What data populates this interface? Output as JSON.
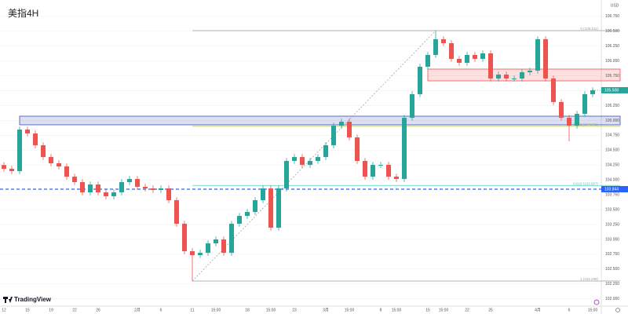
{
  "chart_data": {
    "type": "candlestick",
    "title": "美指4H",
    "brand": "TradingView",
    "axis_unit": "USD",
    "categories": [
      "12",
      null,
      null,
      "15",
      null,
      null,
      "19",
      null,
      null,
      "22",
      null,
      null,
      "26",
      null,
      null,
      null,
      null,
      "2月",
      null,
      null,
      "6",
      null,
      null,
      null,
      "11",
      null,
      null,
      "15:00",
      null,
      null,
      null,
      "18",
      null,
      null,
      "15:00",
      null,
      null,
      "23",
      null,
      null,
      null,
      "3月",
      null,
      null,
      "15:00",
      null,
      null,
      null,
      "8",
      null,
      "15:00",
      null,
      null,
      null,
      "15",
      null,
      "15:00",
      null,
      null,
      "22",
      null,
      null,
      "25",
      null,
      null,
      null,
      null,
      null,
      "4月",
      null,
      null,
      null,
      "6",
      null,
      null,
      "15:00"
    ],
    "open": [
      104.25,
      104.187,
      104.148,
      104.847,
      104.781,
      104.583,
      104.385,
      104.28,
      104.227,
      104.055,
      103.963,
      103.791,
      103.923,
      103.791,
      103.725,
      103.791,
      103.963,
      104.016,
      103.884,
      103.857,
      103.831,
      103.857,
      103.659,
      103.263,
      102.801,
      102.735,
      102.774,
      102.933,
      102.999,
      102.774,
      103.263,
      103.395,
      103.461,
      103.659,
      103.857,
      103.197,
      103.857,
      104.319,
      104.385,
      104.253,
      104.319,
      104.385,
      104.583,
      104.913,
      104.979,
      104.715,
      104.319,
      104.055,
      104.253,
      104.253,
      104.055,
      104.016,
      105.045,
      105.442,
      105.904,
      106.102,
      106.366,
      106.3,
      106.036,
      105.97,
      106.102,
      106.036,
      106.128,
      105.706,
      105.772,
      105.706,
      105.706,
      105.811,
      105.838,
      106.366,
      105.706,
      105.31,
      105.045,
      104.913,
      105.111,
      105.442
    ],
    "high": [
      104.3,
      104.237,
      104.897,
      104.897,
      104.831,
      104.633,
      104.435,
      104.33,
      104.277,
      104.105,
      104.013,
      103.973,
      103.973,
      103.841,
      103.841,
      104.013,
      104.066,
      104.066,
      103.934,
      103.907,
      103.907,
      103.907,
      103.709,
      103.313,
      102.851,
      102.824,
      102.983,
      103.049,
      103.049,
      103.313,
      103.445,
      103.511,
      103.709,
      103.907,
      103.907,
      103.907,
      104.369,
      104.435,
      104.435,
      104.369,
      104.435,
      104.633,
      104.963,
      105.029,
      105.029,
      104.765,
      104.369,
      104.303,
      104.303,
      104.303,
      104.105,
      105.095,
      105.492,
      105.954,
      106.152,
      106.511,
      106.416,
      106.35,
      106.086,
      106.152,
      106.152,
      106.178,
      106.178,
      105.822,
      105.822,
      105.756,
      105.861,
      105.888,
      106.416,
      106.416,
      105.756,
      105.36,
      105.095,
      105.161,
      105.492,
      105.558
    ],
    "low": [
      104.137,
      104.098,
      104.098,
      104.731,
      104.533,
      104.335,
      104.23,
      104.177,
      104.005,
      103.913,
      103.741,
      103.741,
      103.741,
      103.675,
      103.675,
      103.741,
      103.913,
      103.834,
      103.807,
      103.781,
      103.781,
      103.609,
      103.213,
      102.751,
      102.299,
      102.685,
      102.724,
      102.883,
      102.724,
      102.724,
      103.213,
      103.345,
      103.411,
      103.609,
      103.147,
      103.147,
      103.807,
      104.269,
      104.203,
      104.203,
      104.269,
      104.335,
      104.533,
      104.863,
      104.665,
      104.269,
      104.005,
      104.005,
      104.203,
      104.005,
      103.966,
      103.966,
      104.995,
      105.392,
      105.854,
      106.052,
      106.25,
      105.986,
      105.92,
      105.92,
      105.986,
      105.986,
      105.656,
      105.656,
      105.656,
      105.656,
      105.656,
      105.761,
      105.788,
      105.656,
      105.26,
      104.995,
      104.65,
      104.863,
      105.061,
      105.392
    ],
    "close": [
      104.187,
      104.148,
      104.847,
      104.781,
      104.583,
      104.385,
      104.28,
      104.227,
      104.055,
      103.963,
      103.791,
      103.923,
      103.791,
      103.725,
      103.791,
      103.963,
      104.016,
      103.884,
      103.857,
      103.831,
      103.857,
      103.659,
      103.263,
      102.801,
      102.735,
      102.774,
      102.933,
      102.999,
      102.774,
      103.263,
      103.395,
      103.461,
      103.659,
      103.857,
      103.197,
      103.857,
      104.319,
      104.385,
      104.253,
      104.319,
      104.385,
      104.583,
      104.913,
      104.979,
      104.715,
      104.319,
      104.055,
      104.253,
      104.253,
      104.055,
      104.016,
      105.045,
      105.442,
      105.904,
      106.102,
      106.366,
      106.3,
      106.036,
      105.97,
      106.102,
      106.036,
      106.128,
      105.706,
      105.772,
      105.706,
      105.706,
      105.811,
      105.838,
      106.366,
      105.706,
      105.31,
      105.045,
      104.913,
      105.111,
      105.442,
      105.508
    ],
    "up_color": "#26a69a",
    "down_color": "#ef5350",
    "ylim": [
      101.877,
      107.026
    ],
    "yticks": [
      {
        "value": 102,
        "label": "102.000"
      },
      {
        "value": 102.25,
        "label": "102.250"
      },
      {
        "value": 102.5,
        "label": "102.500"
      },
      {
        "value": 102.75,
        "label": "102.750"
      },
      {
        "value": 103,
        "label": "103.000"
      },
      {
        "value": 103.25,
        "label": "103.250"
      },
      {
        "value": 103.5,
        "label": "103.500"
      },
      {
        "value": 103.75,
        "label": "103.750"
      },
      {
        "value": 104,
        "label": "104.000"
      },
      {
        "value": 104.25,
        "label": "104.250"
      },
      {
        "value": 104.5,
        "label": "104.500"
      },
      {
        "value": 104.75,
        "label": "104.750"
      },
      {
        "value": 105,
        "label": "105.000"
      },
      {
        "value": 105.25,
        "label": "105.250"
      },
      {
        "value": 105.5,
        "label": "105.500"
      },
      {
        "value": 105.75,
        "label": "105.750"
      },
      {
        "value": 106,
        "label": "106.000"
      },
      {
        "value": 106.25,
        "label": "106.250"
      },
      {
        "value": 106.5,
        "label": "106.500"
      },
      {
        "value": 106.75,
        "label": "106.750"
      }
    ],
    "grid": true,
    "fib_levels": [
      {
        "value": 106.511,
        "label": "0 (106.511)",
        "color": "#9e9e9e"
      },
      {
        "value": 104.902,
        "label": "0.382 (104.902)",
        "color": "#a5c83c"
      },
      {
        "value": 103.907,
        "label": "0.618 (103.907)",
        "color": "#4dd0b8"
      },
      {
        "value": 102.299,
        "label": "1 (102.299)",
        "color": "#9e9e9e"
      }
    ],
    "hline": {
      "value": 103.844,
      "color": "#2962ff"
    },
    "zones": [
      {
        "from": 105.666,
        "to": 105.864,
        "color": "#ef5350"
      },
      {
        "from": 104.927,
        "to": 105.072,
        "color": "#3f51b5"
      }
    ]
  }
}
